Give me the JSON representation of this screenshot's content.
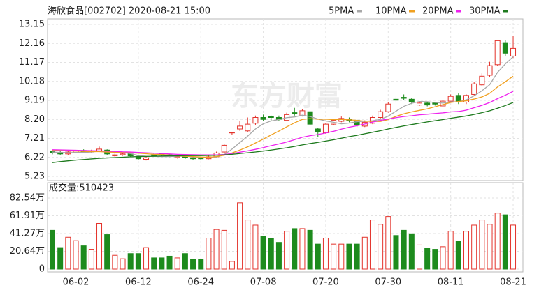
{
  "chart_data": [
    {
      "type": "candlestick",
      "title": "海欣食品[002702] 2020-08-21 15:00",
      "watermark": "东方财富",
      "up_color": "#e3322b",
      "down_color": "#1d8b1d",
      "open": [
        6.55,
        6.48,
        6.4,
        6.48,
        6.58,
        6.5,
        6.55,
        6.6,
        6.3,
        6.35,
        6.4,
        6.28,
        6.12,
        6.35,
        6.4,
        6.35,
        6.2,
        6.25,
        6.2,
        6.2,
        6.15,
        6.25,
        6.5,
        7.5,
        7.7,
        7.6,
        8.0,
        8.3,
        8.35,
        8.3,
        8.15,
        8.55,
        8.4,
        8.6,
        7.7,
        7.5,
        7.95,
        8.1,
        8.2,
        8.15,
        7.85,
        8.0,
        8.3,
        8.6,
        9.25,
        9.35,
        9.25,
        8.95,
        9.05,
        9.05,
        8.9,
        9.15,
        9.45,
        9.1,
        9.5,
        10.0,
        10.5,
        11.05,
        12.2,
        11.5
      ],
      "high": [
        6.62,
        6.55,
        6.58,
        6.62,
        6.64,
        6.62,
        6.78,
        6.64,
        6.42,
        6.46,
        6.46,
        6.32,
        6.28,
        6.42,
        6.45,
        6.4,
        6.32,
        6.3,
        6.26,
        6.24,
        6.32,
        6.52,
        6.9,
        7.53,
        8.1,
        8.3,
        8.4,
        8.45,
        8.4,
        8.4,
        8.55,
        8.8,
        8.75,
        8.62,
        7.75,
        8.0,
        8.22,
        8.35,
        8.3,
        8.2,
        8.15,
        8.4,
        8.7,
        9.1,
        9.4,
        9.5,
        9.3,
        9.15,
        9.12,
        9.1,
        9.22,
        9.5,
        9.55,
        9.5,
        10.15,
        10.6,
        11.2,
        12.3,
        12.35,
        12.55
      ],
      "low": [
        6.38,
        6.33,
        6.35,
        6.42,
        6.45,
        6.46,
        6.5,
        6.35,
        6.25,
        6.3,
        6.24,
        6.08,
        6.06,
        6.25,
        6.28,
        6.24,
        6.16,
        6.14,
        6.1,
        6.1,
        6.12,
        6.22,
        6.45,
        7.4,
        7.6,
        7.55,
        7.9,
        8.1,
        8.15,
        8.1,
        8.1,
        8.4,
        8.35,
        7.9,
        7.3,
        7.45,
        7.9,
        8.05,
        8.05,
        7.8,
        7.8,
        7.95,
        8.25,
        8.55,
        9.05,
        9.2,
        9.0,
        8.9,
        8.88,
        8.92,
        8.85,
        9.1,
        9.0,
        9.0,
        9.45,
        9.95,
        10.4,
        11.0,
        11.5,
        11.4
      ],
      "close": [
        6.45,
        6.4,
        6.5,
        6.55,
        6.5,
        6.55,
        6.65,
        6.4,
        6.35,
        6.4,
        6.3,
        6.15,
        6.2,
        6.3,
        6.35,
        6.3,
        6.25,
        6.2,
        6.15,
        6.15,
        6.25,
        6.45,
        6.85,
        7.53,
        7.85,
        7.95,
        8.3,
        8.2,
        8.3,
        8.2,
        8.45,
        8.5,
        8.65,
        7.95,
        7.55,
        7.95,
        8.15,
        8.25,
        8.15,
        7.9,
        8.05,
        8.3,
        8.6,
        9.0,
        9.2,
        9.3,
        9.1,
        9.05,
        8.95,
        9.0,
        9.15,
        9.4,
        9.1,
        9.45,
        10.05,
        10.45,
        11.0,
        12.3,
        11.65,
        11.9
      ],
      "series": [
        {
          "name": "5PMA",
          "color": "#a8a8a8",
          "values": [
            6.5,
            6.48,
            6.47,
            6.48,
            6.48,
            6.5,
            6.55,
            6.53,
            6.49,
            6.47,
            6.42,
            6.32,
            6.28,
            6.27,
            6.26,
            6.26,
            6.28,
            6.28,
            6.25,
            6.21,
            6.2,
            6.24,
            6.37,
            6.65,
            6.99,
            7.33,
            7.7,
            7.97,
            8.12,
            8.19,
            8.29,
            8.33,
            8.42,
            8.35,
            8.22,
            8.12,
            8.05,
            7.97,
            8.01,
            8.08,
            8.1,
            8.13,
            8.2,
            8.37,
            8.63,
            8.88,
            9.04,
            9.13,
            9.12,
            9.08,
            9.05,
            9.11,
            9.12,
            9.22,
            9.43,
            9.69,
            10.01,
            10.65,
            11.09,
            11.46
          ]
        },
        {
          "name": "10PMA",
          "color": "#f0a020",
          "values": [
            6.58,
            6.57,
            6.56,
            6.55,
            6.53,
            6.52,
            6.52,
            6.5,
            6.49,
            6.48,
            6.46,
            6.44,
            6.41,
            6.38,
            6.37,
            6.34,
            6.3,
            6.28,
            6.26,
            6.24,
            6.23,
            6.26,
            6.33,
            6.45,
            6.6,
            6.77,
            6.97,
            7.17,
            7.39,
            7.59,
            7.81,
            8.02,
            8.2,
            8.24,
            8.21,
            8.21,
            8.19,
            8.2,
            8.18,
            8.15,
            8.11,
            8.09,
            8.09,
            8.19,
            8.36,
            8.49,
            8.59,
            8.67,
            8.75,
            8.86,
            8.97,
            9.08,
            9.13,
            9.17,
            9.26,
            9.37,
            9.56,
            9.89,
            10.16,
            10.45
          ]
        },
        {
          "name": "20PMA",
          "color": "#ee22ee",
          "values": [
            6.62,
            6.61,
            6.6,
            6.59,
            6.58,
            6.57,
            6.56,
            6.55,
            6.53,
            6.51,
            6.5,
            6.48,
            6.46,
            6.44,
            6.42,
            6.4,
            6.38,
            6.37,
            6.36,
            6.35,
            6.35,
            6.35,
            6.37,
            6.42,
            6.49,
            6.56,
            6.64,
            6.73,
            6.83,
            6.92,
            7.02,
            7.14,
            7.27,
            7.35,
            7.41,
            7.49,
            7.58,
            7.69,
            7.79,
            7.87,
            7.96,
            8.06,
            8.15,
            8.22,
            8.29,
            8.35,
            8.39,
            8.44,
            8.47,
            8.51,
            8.54,
            8.59,
            8.61,
            8.68,
            8.81,
            8.93,
            9.08,
            9.28,
            9.46,
            9.66
          ]
        },
        {
          "name": "30PMA",
          "color": "#1e7a1e",
          "values": [
            5.95,
            6.0,
            6.04,
            6.08,
            6.11,
            6.14,
            6.17,
            6.19,
            6.21,
            6.23,
            6.25,
            6.26,
            6.27,
            6.28,
            6.29,
            6.3,
            6.3,
            6.31,
            6.31,
            6.31,
            6.32,
            6.33,
            6.35,
            6.38,
            6.42,
            6.46,
            6.5,
            6.55,
            6.6,
            6.66,
            6.72,
            6.79,
            6.87,
            6.94,
            7.0,
            7.07,
            7.14,
            7.22,
            7.3,
            7.37,
            7.45,
            7.53,
            7.61,
            7.7,
            7.78,
            7.86,
            7.93,
            8.0,
            8.07,
            8.13,
            8.19,
            8.26,
            8.32,
            8.38,
            8.46,
            8.55,
            8.65,
            8.78,
            8.92,
            9.08
          ]
        }
      ],
      "ylim": [
        5.23,
        13.15
      ],
      "yticks": [
        5.23,
        6.22,
        7.21,
        {
          "value": 8.2,
          "label": "8.20"
        },
        9.19,
        10.18,
        11.17,
        12.16,
        13.15
      ],
      "grid": true
    },
    {
      "type": "bar",
      "title": "成交量:510423",
      "categories": [
        null,
        null,
        null,
        "06-02",
        null,
        null,
        null,
        null,
        null,
        null,
        null,
        "06-12",
        null,
        null,
        null,
        null,
        null,
        null,
        null,
        "06-24",
        null,
        null,
        null,
        null,
        null,
        null,
        null,
        "07-08",
        null,
        null,
        null,
        null,
        null,
        null,
        null,
        "07-20",
        null,
        null,
        null,
        null,
        null,
        null,
        null,
        "07-30",
        null,
        null,
        null,
        null,
        null,
        null,
        null,
        "08-11",
        null,
        null,
        null,
        null,
        null,
        null,
        null,
        "08-21"
      ],
      "values": [
        45,
        25,
        37,
        33,
        27,
        23,
        53,
        40,
        16,
        12,
        18,
        18,
        25,
        13,
        13,
        15,
        13,
        18,
        11,
        11,
        36,
        46,
        45,
        9,
        77,
        57,
        51,
        38,
        36,
        31,
        44,
        47,
        47,
        45,
        29,
        36,
        29,
        29,
        29,
        29,
        37,
        57,
        52,
        61,
        39,
        45,
        41,
        28,
        24,
        23,
        26,
        44,
        32,
        44,
        51,
        57,
        52,
        65,
        63,
        51.04
      ],
      "ylim": [
        0,
        82.54
      ],
      "yticks": [
        0,
        {
          "value": 20.64,
          "label": "20.64万"
        },
        {
          "value": 41.27,
          "label": "41.27万"
        },
        {
          "value": 61.91,
          "label": "61.91万"
        },
        {
          "value": 82.54,
          "label": "82.54万"
        }
      ],
      "grid": true
    }
  ]
}
